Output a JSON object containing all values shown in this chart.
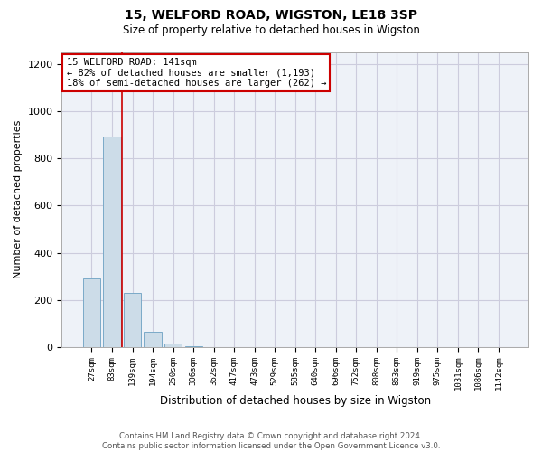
{
  "title1": "15, WELFORD ROAD, WIGSTON, LE18 3SP",
  "title2": "Size of property relative to detached houses in Wigston",
  "xlabel": "Distribution of detached houses by size in Wigston",
  "ylabel": "Number of detached properties",
  "categories": [
    "27sqm",
    "83sqm",
    "139sqm",
    "194sqm",
    "250sqm",
    "306sqm",
    "362sqm",
    "417sqm",
    "473sqm",
    "529sqm",
    "585sqm",
    "640sqm",
    "696sqm",
    "752sqm",
    "808sqm",
    "863sqm",
    "919sqm",
    "975sqm",
    "1031sqm",
    "1086sqm",
    "1142sqm"
  ],
  "values": [
    290,
    893,
    230,
    65,
    14,
    4,
    2,
    1,
    1,
    1,
    0,
    0,
    0,
    1,
    0,
    0,
    0,
    0,
    0,
    0,
    0
  ],
  "bar_color": "#ccdce8",
  "bar_edge_color": "#7aaac8",
  "red_line_x": 1.5,
  "annotation_text_line1": "15 WELFORD ROAD: 141sqm",
  "annotation_text_line2": "← 82% of detached houses are smaller (1,193)",
  "annotation_text_line3": "18% of semi-detached houses are larger (262) →",
  "annotation_box_color": "#ffffff",
  "annotation_box_edge_color": "#cc0000",
  "red_line_color": "#cc0000",
  "ylim": [
    0,
    1250
  ],
  "yticks": [
    0,
    200,
    400,
    600,
    800,
    1000,
    1200
  ],
  "grid_color": "#ccccdd",
  "bg_color": "#eef2f8",
  "footer_line1": "Contains HM Land Registry data © Crown copyright and database right 2024.",
  "footer_line2": "Contains public sector information licensed under the Open Government Licence v3.0."
}
